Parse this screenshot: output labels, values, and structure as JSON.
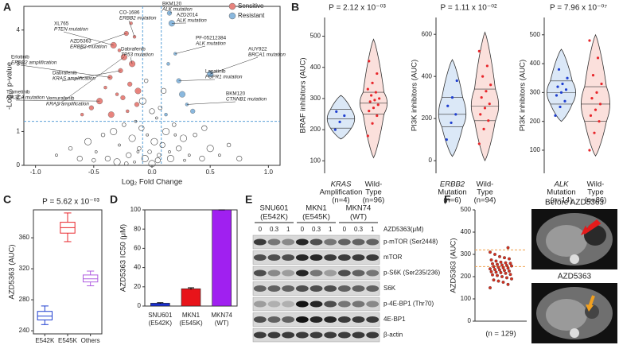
{
  "panel_labels": [
    "A",
    "B",
    "C",
    "D",
    "E",
    "F"
  ],
  "chart_data": [
    {
      "type": "scatter",
      "x_label": "Log₂ Fold Change",
      "y_label": "-Log₁₀ p-value",
      "xlim": [
        -1.1,
        1.1
      ],
      "xticks": [
        {
          "value": -1,
          "label": "-1.0"
        },
        {
          "value": -0.5,
          "label": "-0.5"
        },
        {
          "value": 0,
          "label": "0.0"
        },
        {
          "value": 0.5,
          "label": "0.5"
        },
        {
          "value": 1,
          "label": "1.0"
        }
      ],
      "ylim": [
        0,
        4.7
      ],
      "yticks": [
        0,
        1,
        2,
        3,
        4
      ],
      "thresholds": {
        "y": 1.3,
        "x": [
          -0.08,
          0.08
        ]
      },
      "other_points": {
        "color": "#444444",
        "x": [
          -0.82,
          -0.7,
          -0.62,
          -0.55,
          -0.48,
          -0.42,
          -0.38,
          -0.33,
          -0.28,
          -0.24,
          -0.2,
          -0.17,
          -0.14,
          -0.11,
          -0.09,
          -0.06,
          -0.04,
          -0.02,
          0,
          0.02,
          0.04,
          0.06,
          0.09,
          0.12,
          0.15,
          0.19,
          0.23,
          0.27,
          0.32,
          0.37,
          0.43,
          0.5,
          0.58,
          0.66,
          0.75,
          -0.3,
          -0.15,
          -0.05,
          0.05,
          0.16,
          0.28,
          -0.22,
          0.1,
          -0.08,
          0.2,
          -0.5,
          0.45,
          0.0,
          -0.12,
          0.07
        ],
        "values": [
          0.3,
          0.5,
          0.2,
          0.7,
          0.4,
          0.9,
          0.2,
          1.0,
          0.6,
          1.2,
          0.3,
          0.8,
          1.3,
          0.5,
          1.1,
          0.2,
          0.9,
          0.4,
          1.6,
          0.7,
          1.4,
          0.3,
          0.6,
          1.0,
          0.4,
          1.2,
          0.5,
          0.8,
          0.3,
          0.9,
          0.2,
          0.5,
          0.3,
          0.6,
          0.2,
          0.1,
          0.1,
          2.5,
          0.15,
          0.2,
          0.15,
          0.05,
          2.2,
          1.9,
          0.9,
          0.15,
          1.1,
          0.05,
          0.4,
          1.7
        ]
      },
      "series": [
        {
          "name": "Sensitive",
          "color": "#e8837d",
          "x": [
            -0.6,
            -0.52,
            -0.45,
            -0.4,
            -0.36,
            -0.33,
            -0.3,
            -0.27,
            -0.24,
            -0.21,
            -0.19,
            -0.17,
            -0.15,
            -0.13,
            -0.12,
            -0.28,
            -0.22,
            -0.35,
            -0.18,
            -0.25
          ],
          "values": [
            1.5,
            1.7,
            1.9,
            2.3,
            2.6,
            3.55,
            2.1,
            2.8,
            3.2,
            1.6,
            2.4,
            3.0,
            3.8,
            1.8,
            2.2,
            3.4,
            3.9,
            1.5,
            4.2,
            2.0
          ]
        },
        {
          "name": "Resistant",
          "color": "#8ab8de",
          "x": [
            0.12,
            0.15,
            0.17,
            0.2,
            0.23,
            0.26,
            0.3,
            0.35,
            0.5,
            0.14
          ],
          "values": [
            1.5,
            4.5,
            4.2,
            3.3,
            2.5,
            2.1,
            1.8,
            1.6,
            2.7,
            3.0
          ]
        }
      ],
      "annotations": [
        {
          "drug": "XL765",
          "marker": "PTEN mutation",
          "x": -0.33,
          "y": 3.55
        },
        {
          "drug": "CO-1686",
          "marker": "ERBB2 mutation",
          "x": -0.15,
          "y": 3.8
        },
        {
          "drug": "AZD5363",
          "marker": "ERBB2 mutation",
          "x": -0.22,
          "y": 3.9
        },
        {
          "drug": "Erlotinib",
          "marker": "ERBB2 amplification",
          "x": -0.36,
          "y": 2.6
        },
        {
          "drug": "Dabrafenib",
          "marker": "TP53 mutation",
          "x": -0.17,
          "y": 3.0
        },
        {
          "drug": "Dabrafenib",
          "marker": "KRAS amplification",
          "x": -0.27,
          "y": 2.8
        },
        {
          "drug": "Trametinib",
          "marker": "PIK3CA mutation",
          "x": -0.45,
          "y": 1.9
        },
        {
          "drug": "Vemurafenib",
          "marker": "KRAS amplification",
          "x": -0.24,
          "y": 3.2
        },
        {
          "drug": "BKM120",
          "marker": "ALK mutation",
          "x": 0.15,
          "y": 4.5
        },
        {
          "drug": "AZD2014",
          "marker": "ALK mutation",
          "x": 0.17,
          "y": 4.2
        },
        {
          "drug": "PF-05212384",
          "marker": "ALK mutation",
          "x": 0.2,
          "y": 3.3
        },
        {
          "drug": "AUY922",
          "marker": "BRCA1 mutation",
          "x": 0.5,
          "y": 2.7
        },
        {
          "drug": "Lapatinib",
          "marker": "FGFR1 mutation",
          "x": 0.23,
          "y": 2.5
        },
        {
          "drug": "BKM120",
          "marker": "CTNNB1 mutation",
          "x": 0.3,
          "y": 1.8
        }
      ]
    },
    {
      "type": "violin",
      "title": "P = 2.12 x 10⁻⁰³",
      "y_label": "BRAF inhibitors (AUC)",
      "ylim": [
        60,
        560
      ],
      "yticks": [
        100,
        200,
        300,
        400,
        500
      ],
      "categories": [
        [
          "KRAS",
          "Amplification",
          "(n=4)"
        ],
        [
          "Wild-",
          "Type",
          "(n=96)"
        ]
      ],
      "series": [
        {
          "color": "#1f3fd0",
          "fill": "#dbe8f7",
          "quantiles": [
            170,
            205,
            235,
            265,
            310
          ],
          "points": [
            200,
            225,
            245,
            258
          ]
        },
        {
          "color": "#e8262b",
          "fill": "#fbe0dc",
          "quantiles": [
            110,
            250,
            285,
            320,
            490
          ],
          "points": [
            180,
            220,
            245,
            260,
            270,
            280,
            290,
            295,
            300,
            310,
            320,
            330,
            350,
            380,
            420
          ]
        }
      ]
    },
    {
      "type": "violin",
      "title": "P = 1.11 x 10⁻⁰²",
      "y_label": "PI3K inhibitors (AUC)",
      "ylim": [
        -60,
        680
      ],
      "yticks": [
        0,
        200,
        400,
        600
      ],
      "categories": [
        [
          "ERBB2",
          "Mutation",
          "(n=6)"
        ],
        [
          "Wild-",
          "Type",
          "(n=94)"
        ]
      ],
      "series": [
        {
          "color": "#1f3fd0",
          "fill": "#dbe8f7",
          "quantiles": [
            20,
            160,
            220,
            300,
            480
          ],
          "points": [
            100,
            180,
            220,
            260,
            300,
            380
          ]
        },
        {
          "color": "#e8262b",
          "fill": "#fbe0dc",
          "quantiles": [
            0,
            190,
            260,
            340,
            610
          ],
          "points": [
            80,
            150,
            190,
            220,
            250,
            270,
            300,
            330,
            360,
            400,
            450,
            520
          ]
        }
      ]
    },
    {
      "type": "violin",
      "title": "P = 7.96 x 10⁻⁰⁷",
      "y_label": "PI3K inhibitors (AUC)",
      "ylim": [
        20,
        560
      ],
      "yticks": [
        100,
        200,
        300,
        400,
        500
      ],
      "categories": [
        [
          "ALK",
          "Mutation",
          "(n=14)"
        ],
        [
          "Wild-",
          "Type",
          "(n=86)"
        ]
      ],
      "series": [
        {
          "color": "#1f3fd0",
          "fill": "#dbe8f7",
          "quantiles": [
            200,
            260,
            300,
            340,
            450
          ],
          "points": [
            220,
            250,
            270,
            290,
            300,
            310,
            320,
            330,
            350,
            380
          ]
        },
        {
          "color": "#e8262b",
          "fill": "#fbe0dc",
          "quantiles": [
            80,
            200,
            260,
            320,
            500
          ],
          "points": [
            100,
            160,
            200,
            220,
            240,
            260,
            280,
            300,
            330,
            360,
            420,
            480
          ]
        }
      ]
    },
    {
      "type": "box",
      "title": "P = 5.62 x 10⁻⁰³",
      "y_label": "AZD5363 (AUC)",
      "ylim": [
        236,
        396
      ],
      "yticks": [
        240,
        280,
        320,
        360
      ],
      "categories": [
        "E542K",
        "E545K",
        "Others"
      ],
      "colors": [
        "#1f3fd0",
        "#e8262b",
        "#b05ee0"
      ],
      "boxes": [
        [
          248,
          254,
          259,
          265,
          272
        ],
        [
          355,
          366,
          373,
          380,
          392
        ],
        [
          298,
          303,
          307,
          312,
          317
        ]
      ]
    },
    {
      "type": "bar",
      "y_label": "AZD5363 IC50 (μM)",
      "ylim": [
        0,
        100
      ],
      "yticks": [
        0,
        20,
        40,
        60,
        80,
        100
      ],
      "categories": [
        [
          "SNU601",
          "(E542K)"
        ],
        [
          "MKN1",
          "(E545K)"
        ],
        [
          "MKN74",
          "(WT)"
        ]
      ],
      "values": [
        3,
        18,
        100
      ],
      "errors": [
        0.5,
        1,
        0
      ],
      "colors": [
        "#1a2fd0",
        "#e8141a",
        "#a020f0"
      ]
    },
    {
      "type": "strip",
      "y_label": "AZD5363 (AUC)",
      "x_label": "(n = 129)",
      "ylim": [
        0,
        500
      ],
      "yticks": [
        0,
        100,
        200,
        300,
        400,
        500
      ],
      "color": "#d7301f",
      "reference_color": "#f0a04b",
      "reference_lines": [
        320,
        245
      ],
      "values": [
        150,
        165,
        175,
        180,
        185,
        190,
        195,
        200,
        205,
        208,
        210,
        215,
        218,
        220,
        222,
        225,
        228,
        230,
        232,
        235,
        238,
        240,
        242,
        245,
        248,
        250,
        252,
        255,
        258,
        260,
        262,
        265,
        270,
        275,
        280,
        285,
        290,
        300,
        310,
        330
      ]
    }
  ],
  "blot": {
    "cell_lines": [
      [
        "SNU601",
        "(E542K)"
      ],
      [
        "MKN1",
        "(E545K)"
      ],
      [
        "MKN74",
        "(WT)"
      ]
    ],
    "doses": [
      "0",
      "0.3",
      "1"
    ],
    "dose_label": "AZD5363(μM)",
    "rows": [
      "p-mTOR (Ser2448)",
      "mTOR",
      "p-S6K (Ser235/236)",
      "S6K",
      "p-4E-BP1 (Thr70)",
      "4E-BP1",
      "β-actin"
    ]
  },
  "ct_titles": [
    "Before AZD5363",
    "AZD5363"
  ]
}
